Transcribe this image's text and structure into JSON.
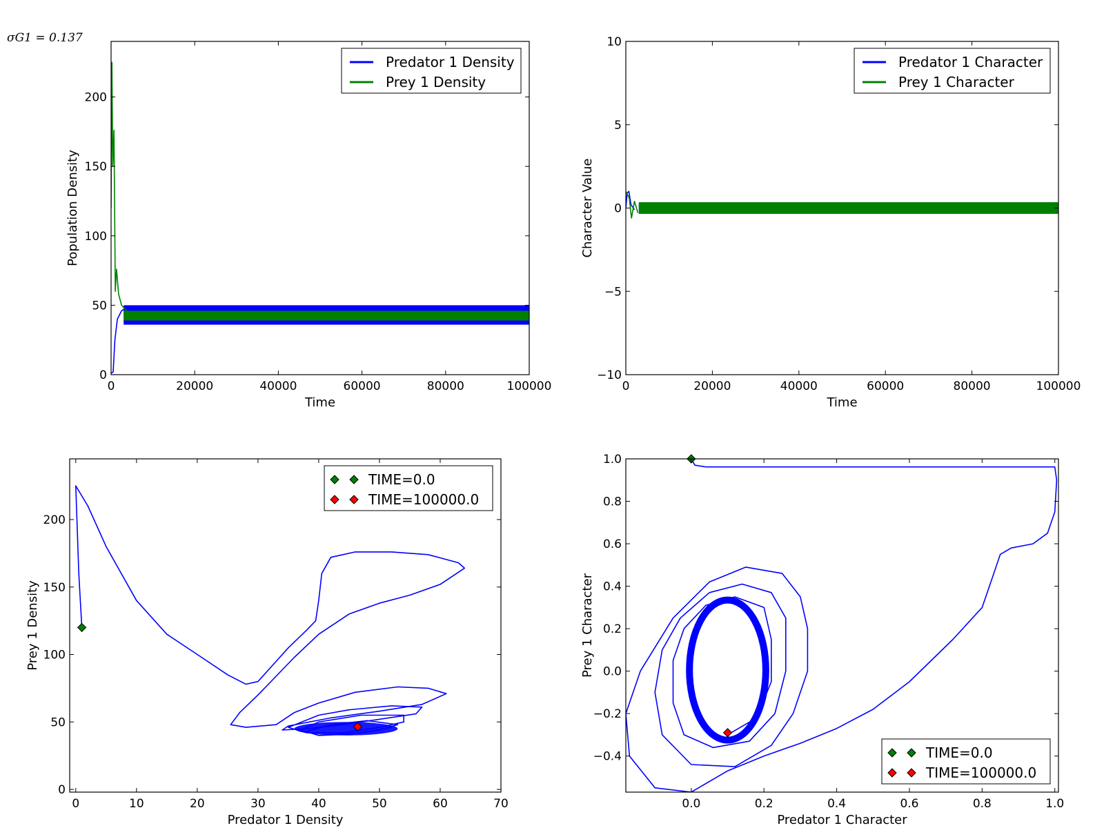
{
  "annotation": "σG1 = 0.137",
  "colors": {
    "blue": "#0000ff",
    "green": "#008000",
    "red": "#ff0000"
  },
  "chart_data": [
    {
      "id": "density-time",
      "type": "line",
      "xlabel": "Time",
      "ylabel": "Population Density",
      "xlim": [
        0,
        100000
      ],
      "ylim": [
        0,
        240
      ],
      "xticks": [
        0,
        20000,
        40000,
        60000,
        80000,
        100000
      ],
      "yticks": [
        0,
        50,
        100,
        150,
        200
      ],
      "legend": "top-right",
      "series": [
        {
          "name": "Predator 1 Density",
          "color": "#0000ff",
          "band": {
            "from": 3000,
            "low": 36,
            "high": 50
          },
          "points": [
            [
              0,
              1
            ],
            [
              500,
              2
            ],
            [
              900,
              25
            ],
            [
              1500,
              40
            ],
            [
              2500,
              46
            ],
            [
              4000,
              49
            ]
          ]
        },
        {
          "name": "Prey 1 Density",
          "color": "#008000",
          "band": {
            "from": 3000,
            "low": 39,
            "high": 46
          },
          "points": [
            [
              0,
              120
            ],
            [
              200,
              225
            ],
            [
              400,
              150
            ],
            [
              700,
              176
            ],
            [
              1000,
              60
            ],
            [
              1300,
              76
            ],
            [
              1800,
              58
            ],
            [
              2500,
              50
            ],
            [
              4000,
              45
            ]
          ]
        }
      ]
    },
    {
      "id": "character-time",
      "type": "line",
      "xlabel": "Time",
      "ylabel": "Character Value",
      "xlim": [
        0,
        100000
      ],
      "ylim": [
        -10,
        10
      ],
      "xticks": [
        0,
        20000,
        40000,
        60000,
        80000,
        100000
      ],
      "yticks": [
        -10,
        -5,
        0,
        5,
        10
      ],
      "legend": "top-right",
      "series": [
        {
          "name": "Predator 1 Character",
          "color": "#0000ff",
          "band": {
            "from": 3000,
            "low": -0.2,
            "high": 0.25
          },
          "points": [
            [
              0,
              0
            ],
            [
              300,
              0.9
            ],
            [
              700,
              1.0
            ],
            [
              1200,
              0.2
            ],
            [
              2000,
              -0.1
            ]
          ]
        },
        {
          "name": "Prey 1 Character",
          "color": "#008000",
          "band": {
            "from": 3000,
            "low": -0.35,
            "high": 0.35
          },
          "points": [
            [
              0,
              1.0
            ],
            [
              800,
              0.6
            ],
            [
              1300,
              -0.6
            ],
            [
              2000,
              0.4
            ],
            [
              2800,
              -0.3
            ]
          ]
        }
      ]
    },
    {
      "id": "density-phase",
      "type": "line",
      "xlabel": "Predator 1 Density",
      "ylabel": "Prey 1 Density",
      "xlim": [
        -1,
        70
      ],
      "ylim": [
        -2,
        245
      ],
      "xticks": [
        0,
        10,
        20,
        30,
        40,
        50,
        60,
        70
      ],
      "yticks": [
        0,
        50,
        100,
        150,
        200
      ],
      "legend": "top-right",
      "series": [
        {
          "name": "trajectory",
          "color": "#0000ff",
          "points": [
            [
              1.0,
              120
            ],
            [
              0.5,
              160
            ],
            [
              0,
              225
            ],
            [
              2,
              210
            ],
            [
              5,
              180
            ],
            [
              10,
              140
            ],
            [
              15,
              115
            ],
            [
              20,
              100
            ],
            [
              25,
              85
            ],
            [
              28,
              78
            ],
            [
              30,
              80
            ],
            [
              32,
              90
            ],
            [
              35,
              105
            ],
            [
              38,
              118
            ],
            [
              39.5,
              125
            ],
            [
              40,
              140
            ],
            [
              40.5,
              160
            ],
            [
              42,
              172
            ],
            [
              46,
              176
            ],
            [
              52,
              176
            ],
            [
              58,
              174
            ],
            [
              63,
              168
            ],
            [
              64,
              164
            ],
            [
              60,
              152
            ],
            [
              55,
              144
            ],
            [
              50,
              138
            ],
            [
              45,
              130
            ],
            [
              40,
              115
            ],
            [
              36,
              98
            ],
            [
              30,
              70
            ],
            [
              27,
              57
            ],
            [
              25.5,
              48
            ],
            [
              28,
              46
            ],
            [
              33,
              48
            ],
            [
              36,
              57
            ],
            [
              40,
              64
            ],
            [
              46,
              72
            ],
            [
              53,
              76
            ],
            [
              58,
              75
            ],
            [
              61,
              71
            ],
            [
              57,
              63
            ],
            [
              50,
              58
            ],
            [
              42,
              53
            ],
            [
              35,
              47
            ],
            [
              34,
              44
            ],
            [
              38,
              45
            ],
            [
              44,
              48
            ],
            [
              50,
              52
            ],
            [
              56,
              56
            ],
            [
              57,
              61
            ],
            [
              52,
              62
            ],
            [
              45,
              59
            ],
            [
              40,
              55
            ],
            [
              35,
              46
            ],
            [
              38,
              42
            ],
            [
              44,
              42
            ],
            [
              50,
              46
            ],
            [
              54,
              50
            ],
            [
              54,
              55
            ],
            [
              47,
              55
            ],
            [
              40,
              50
            ],
            [
              37,
              44
            ],
            [
              40,
              40
            ],
            [
              45,
              41
            ],
            [
              50,
              44
            ],
            [
              53,
              48
            ],
            [
              48,
              51
            ],
            [
              42,
              48
            ],
            [
              38,
              43
            ],
            [
              40,
              40
            ],
            [
              47,
              42
            ],
            [
              52,
              46
            ]
          ],
          "core": {
            "x": [
              36,
              53
            ],
            "y": [
              40,
              50
            ]
          }
        }
      ],
      "markers": [
        {
          "label": "TIME=0.0",
          "color": "#008000",
          "x": 1.0,
          "y": 120
        },
        {
          "label": "TIME=100000.0",
          "color": "#ff0000",
          "x": 46.4,
          "y": 46.5
        }
      ]
    },
    {
      "id": "character-phase",
      "type": "line",
      "xlabel": "Predator 1 Character",
      "ylabel": "Prey 1 Character",
      "xlim": [
        -0.18,
        1.01
      ],
      "ylim": [
        -0.57,
        1.0
      ],
      "xticks": [
        0.0,
        0.2,
        0.4,
        0.6,
        0.8,
        1.0
      ],
      "yticks": [
        -0.4,
        -0.2,
        0.0,
        0.2,
        0.4,
        0.6,
        0.8,
        1.0
      ],
      "legend": "bottom-right",
      "series": [
        {
          "name": "trajectory",
          "color": "#0000ff",
          "points": [
            [
              0.0,
              1.0
            ],
            [
              0.01,
              0.97
            ],
            [
              0.04,
              0.962
            ],
            [
              0.3,
              0.962
            ],
            [
              0.6,
              0.962
            ],
            [
              0.9,
              0.962
            ],
            [
              1.0,
              0.962
            ],
            [
              1.005,
              0.9
            ],
            [
              1.0,
              0.75
            ],
            [
              0.98,
              0.65
            ],
            [
              0.94,
              0.6
            ],
            [
              0.88,
              0.58
            ],
            [
              0.85,
              0.55
            ],
            [
              0.83,
              0.45
            ],
            [
              0.8,
              0.3
            ],
            [
              0.72,
              0.15
            ],
            [
              0.6,
              -0.05
            ],
            [
              0.5,
              -0.18
            ],
            [
              0.4,
              -0.27
            ],
            [
              0.3,
              -0.34
            ],
            [
              0.2,
              -0.4
            ],
            [
              0.1,
              -0.47
            ],
            [
              0.0,
              -0.57
            ],
            [
              -0.1,
              -0.55
            ],
            [
              -0.17,
              -0.4
            ],
            [
              -0.18,
              -0.2
            ],
            [
              -0.14,
              0.0
            ],
            [
              -0.05,
              0.25
            ],
            [
              0.05,
              0.42
            ],
            [
              0.15,
              0.49
            ],
            [
              0.25,
              0.46
            ],
            [
              0.3,
              0.35
            ],
            [
              0.32,
              0.2
            ],
            [
              0.32,
              0.0
            ],
            [
              0.28,
              -0.2
            ],
            [
              0.22,
              -0.35
            ],
            [
              0.12,
              -0.45
            ],
            [
              0.0,
              -0.44
            ],
            [
              -0.08,
              -0.3
            ],
            [
              -0.1,
              -0.1
            ],
            [
              -0.08,
              0.1
            ],
            [
              -0.03,
              0.25
            ],
            [
              0.05,
              0.37
            ],
            [
              0.14,
              0.41
            ],
            [
              0.22,
              0.37
            ],
            [
              0.26,
              0.25
            ],
            [
              0.26,
              0.0
            ],
            [
              0.23,
              -0.2
            ],
            [
              0.16,
              -0.33
            ],
            [
              0.06,
              -0.36
            ],
            [
              -0.02,
              -0.3
            ],
            [
              -0.05,
              -0.15
            ],
            [
              -0.05,
              0.05
            ],
            [
              -0.02,
              0.2
            ],
            [
              0.04,
              0.31
            ],
            [
              0.12,
              0.35
            ],
            [
              0.2,
              0.3
            ],
            [
              0.22,
              0.15
            ],
            [
              0.22,
              -0.05
            ],
            [
              0.18,
              -0.22
            ],
            [
              0.1,
              -0.3
            ]
          ],
          "core": {
            "cx": 0.1,
            "cy": 0.005,
            "rx": 0.105,
            "ry": 0.33
          }
        }
      ],
      "markers": [
        {
          "label": "TIME=0.0",
          "color": "#008000",
          "x": 0.0,
          "y": 1.0
        },
        {
          "label": "TIME=100000.0",
          "color": "#ff0000",
          "x": 0.1,
          "y": -0.29
        }
      ]
    }
  ]
}
